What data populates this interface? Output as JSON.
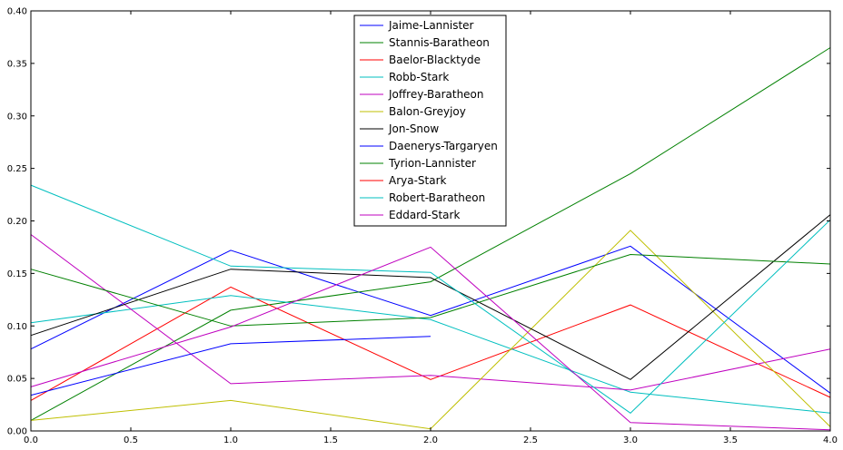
{
  "chart_data": {
    "type": "line",
    "title": "",
    "xlabel": "",
    "ylabel": "",
    "xlim": [
      0,
      4
    ],
    "ylim": [
      0,
      0.4
    ],
    "x_ticks": [
      "0.0",
      "0.5",
      "1.0",
      "1.5",
      "2.0",
      "2.5",
      "3.0",
      "3.5",
      "4.0"
    ],
    "y_ticks": [
      "0.00",
      "0.05",
      "0.10",
      "0.15",
      "0.20",
      "0.25",
      "0.30",
      "0.35",
      "0.40"
    ],
    "grid": false,
    "legend_position": "top-center",
    "series": [
      {
        "name": "Jaime-Lannister",
        "color": "#0000ff",
        "x": [
          0,
          1,
          2,
          3,
          4
        ],
        "y": [
          0.078,
          0.172,
          0.11,
          0.176,
          0.036
        ]
      },
      {
        "name": "Stannis-Baratheon",
        "color": "#008000",
        "x": [
          0,
          1,
          2,
          3,
          4
        ],
        "y": [
          0.01,
          0.115,
          0.142,
          0.245,
          0.365
        ]
      },
      {
        "name": "Baelor-Blacktyde",
        "color": "#ff0000",
        "x": [
          0,
          1,
          2,
          3,
          4
        ],
        "y": [
          0.029,
          0.137,
          0.049,
          0.12,
          0.032
        ]
      },
      {
        "name": "Robb-Stark",
        "color": "#00bfbf",
        "x": [
          0,
          1,
          2,
          3,
          4
        ],
        "y": [
          0.103,
          0.129,
          0.106,
          0.037,
          0.017
        ]
      },
      {
        "name": "Joffrey-Baratheon",
        "color": "#bf00bf",
        "x": [
          0,
          1,
          2,
          3,
          4
        ],
        "y": [
          0.187,
          0.045,
          0.053,
          0.039,
          0.078
        ]
      },
      {
        "name": "Balon-Greyjoy",
        "color": "#bfbf00",
        "x": [
          0,
          1,
          2,
          3,
          4
        ],
        "y": [
          0.01,
          0.029,
          0.002,
          0.191,
          0.004
        ]
      },
      {
        "name": "Jon-Snow",
        "color": "#000000",
        "x": [
          0,
          1,
          2,
          3,
          4
        ],
        "y": [
          0.091,
          0.154,
          0.146,
          0.049,
          0.206
        ]
      },
      {
        "name": "Daenerys-Targaryen",
        "color": "#0000ff",
        "x": [
          0,
          1,
          2
        ],
        "y": [
          0.034,
          0.083,
          0.09
        ]
      },
      {
        "name": "Tyrion-Lannister",
        "color": "#008000",
        "x": [
          0,
          1,
          2,
          3,
          4
        ],
        "y": [
          0.154,
          0.1,
          0.108,
          0.168,
          0.159
        ]
      },
      {
        "name": "Arya-Stark",
        "color": "#ff0000",
        "x": [],
        "y": []
      },
      {
        "name": "Robert-Baratheon",
        "color": "#00bfbf",
        "x": [
          0,
          1,
          2,
          3,
          4
        ],
        "y": [
          0.234,
          0.157,
          0.151,
          0.017,
          0.201
        ]
      },
      {
        "name": "Eddard-Stark",
        "color": "#bf00bf",
        "x": [
          0,
          1,
          2,
          3,
          4
        ],
        "y": [
          0.042,
          0.099,
          0.175,
          0.008,
          0.001
        ]
      }
    ]
  }
}
